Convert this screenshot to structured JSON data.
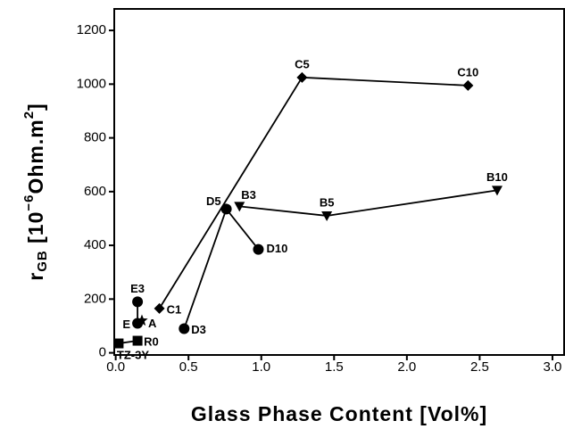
{
  "chart_data": {
    "type": "scatter",
    "xlabel": "Glass Phase Content [Vol%]",
    "ylabel": {
      "base": "r",
      "sub": "GB",
      "pre": " [10",
      "sup": "−6",
      "mid": "Ohm.m",
      "sup2": "2",
      "end": "]"
    },
    "xlim": [
      -0.01,
      3.08
    ],
    "ylim": [
      -8,
      1280
    ],
    "xticks": [
      {
        "value": 0,
        "label": "0.0"
      },
      {
        "value": 0.5,
        "label": "0.5"
      },
      {
        "value": 1,
        "label": "1.0"
      },
      {
        "value": 1.5,
        "label": "1.5"
      },
      {
        "value": 2,
        "label": "2.0"
      },
      {
        "value": 2.5,
        "label": "2.5"
      },
      {
        "value": 3,
        "label": "3.0"
      }
    ],
    "yticks": [
      0,
      200,
      400,
      600,
      800,
      1000,
      1200
    ],
    "series": [
      {
        "marker": "diamond",
        "color": "#000000",
        "line": true,
        "labels": [
          "C1",
          "C5",
          "C10"
        ],
        "x": [
          0.3,
          1.28,
          2.42
        ],
        "values": [
          165,
          1025,
          995
        ]
      },
      {
        "marker": "triangle-down",
        "color": "#000000",
        "line": true,
        "labels": [
          "B3",
          "B5",
          "B10"
        ],
        "x": [
          0.85,
          1.45,
          2.62
        ],
        "values": [
          545,
          510,
          605
        ]
      },
      {
        "marker": "circle",
        "color": "#000000",
        "line": true,
        "labels": [
          "D3",
          "D5",
          "D10"
        ],
        "x": [
          0.47,
          0.76,
          0.98
        ],
        "values": [
          90,
          535,
          385
        ]
      },
      {
        "marker": "circle",
        "color": "#000000",
        "line": true,
        "labels": [
          "E",
          "E3"
        ],
        "x": [
          0.15,
          0.15
        ],
        "values": [
          110,
          190
        ]
      },
      {
        "marker": "star",
        "color": "#000000",
        "line": false,
        "labels": [
          "A"
        ],
        "x": [
          0.18
        ],
        "values": [
          120
        ]
      },
      {
        "marker": "square",
        "color": "#000000",
        "line": true,
        "labels": [
          "TZ-3Y",
          "R0"
        ],
        "x": [
          0.02,
          0.15
        ],
        "values": [
          35,
          45
        ]
      }
    ]
  }
}
